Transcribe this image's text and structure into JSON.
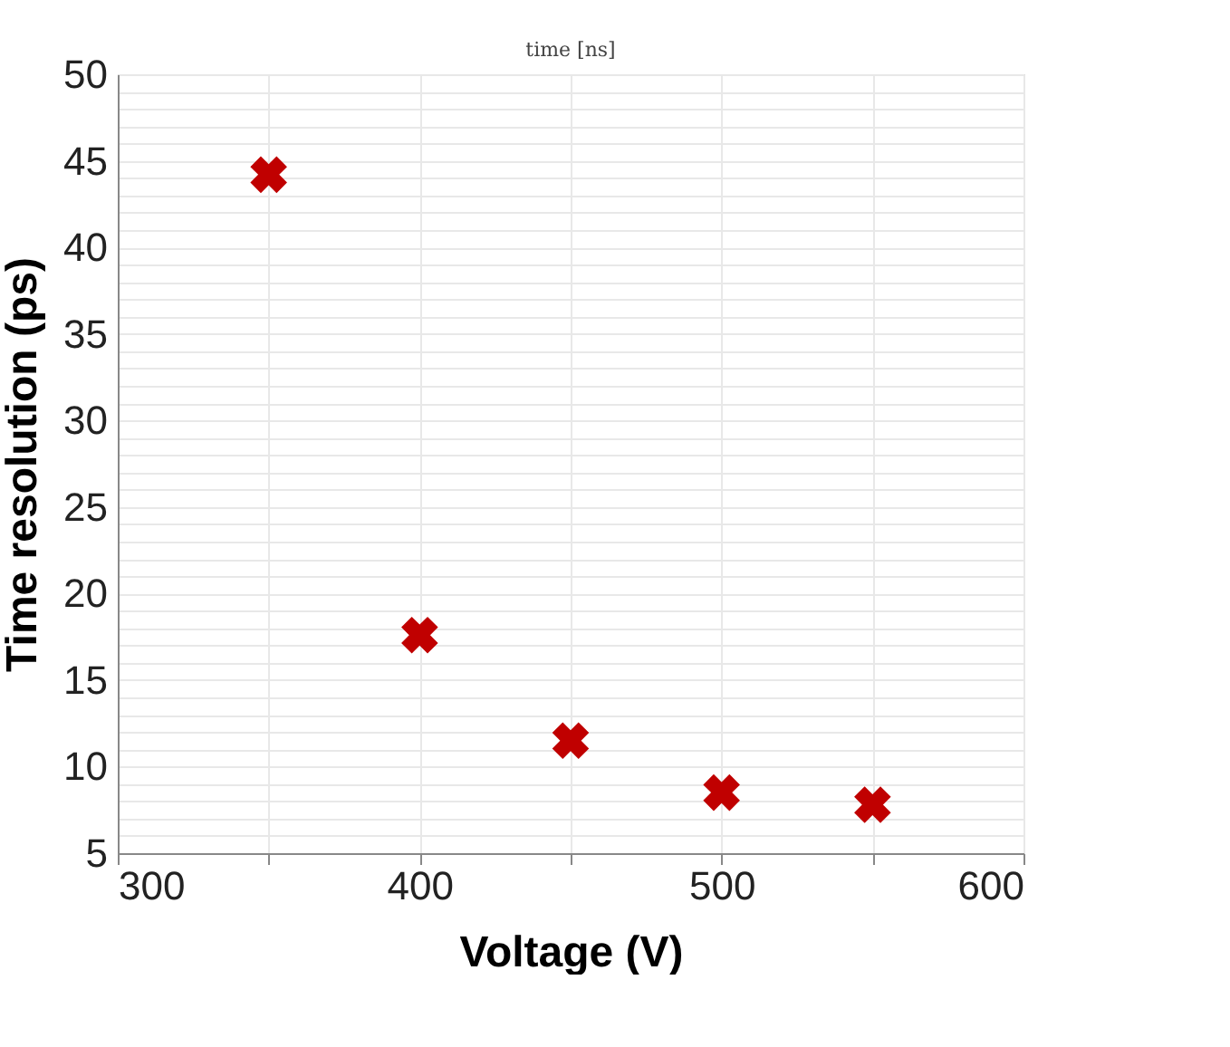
{
  "chart_data": {
    "type": "scatter",
    "x": [
      350,
      400,
      450,
      500,
      550
    ],
    "values": [
      44.2,
      17.6,
      11.5,
      8.5,
      7.8
    ],
    "color": "#c00000",
    "marker": "cross",
    "xlabel": "Voltage (V)",
    "ylabel": "Time resolution (ps)",
    "annotations": [
      "time [ns]"
    ],
    "xlim": [
      300,
      600
    ],
    "ylim": [
      5,
      50
    ],
    "xticks": [
      300,
      {
        "value": 350,
        "label": null
      },
      400,
      {
        "value": 450,
        "label": null
      },
      500,
      {
        "value": 550,
        "label": null
      },
      600
    ],
    "yticks": [
      5,
      {
        "value": 6,
        "label": null
      },
      {
        "value": 7,
        "label": null
      },
      {
        "value": 8,
        "label": null
      },
      {
        "value": 9,
        "label": null
      },
      10,
      {
        "value": 11,
        "label": null
      },
      {
        "value": 12,
        "label": null
      },
      {
        "value": 13,
        "label": null
      },
      {
        "value": 14,
        "label": null
      },
      15,
      {
        "value": 16,
        "label": null
      },
      {
        "value": 17,
        "label": null
      },
      {
        "value": 18,
        "label": null
      },
      {
        "value": 19,
        "label": null
      },
      20,
      {
        "value": 21,
        "label": null
      },
      {
        "value": 22,
        "label": null
      },
      {
        "value": 23,
        "label": null
      },
      {
        "value": 24,
        "label": null
      },
      25,
      {
        "value": 26,
        "label": null
      },
      {
        "value": 27,
        "label": null
      },
      {
        "value": 28,
        "label": null
      },
      {
        "value": 29,
        "label": null
      },
      30,
      {
        "value": 31,
        "label": null
      },
      {
        "value": 32,
        "label": null
      },
      {
        "value": 33,
        "label": null
      },
      {
        "value": 34,
        "label": null
      },
      35,
      {
        "value": 36,
        "label": null
      },
      {
        "value": 37,
        "label": null
      },
      {
        "value": 38,
        "label": null
      },
      {
        "value": 39,
        "label": null
      },
      40,
      {
        "value": 41,
        "label": null
      },
      {
        "value": 42,
        "label": null
      },
      {
        "value": 43,
        "label": null
      },
      {
        "value": 44,
        "label": null
      },
      45,
      {
        "value": 46,
        "label": null
      },
      {
        "value": 47,
        "label": null
      },
      {
        "value": 48,
        "label": null
      },
      {
        "value": 49,
        "label": null
      },
      50
    ],
    "grid": true
  }
}
